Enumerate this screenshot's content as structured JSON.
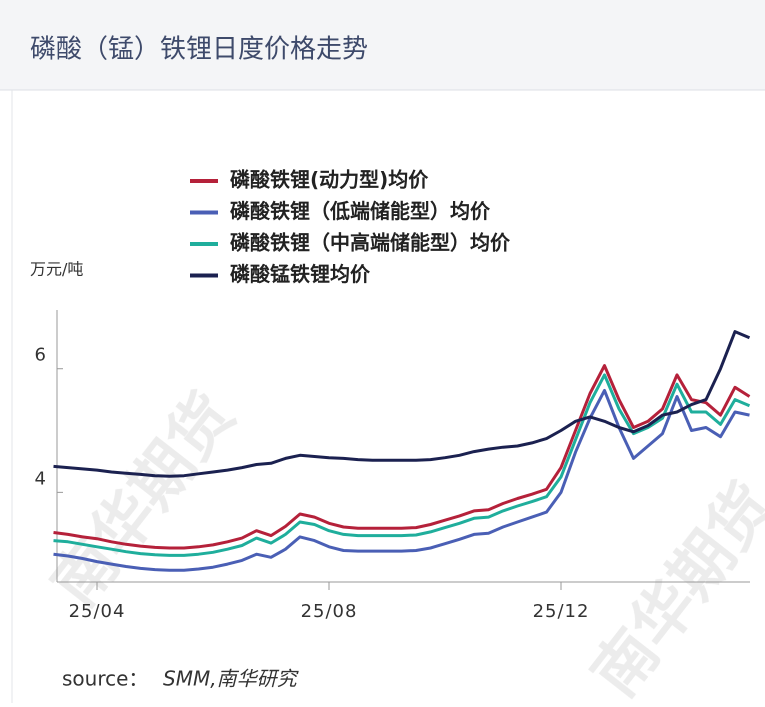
{
  "header": {
    "title": "磷酸（锰）铁锂日度价格走势"
  },
  "chart_data": {
    "type": "line",
    "y_axis_label": "万元/吨",
    "categories": [
      null,
      null,
      null,
      "25/04",
      null,
      null,
      null,
      null,
      null,
      null,
      null,
      null,
      null,
      null,
      null,
      null,
      null,
      null,
      null,
      "25/08",
      null,
      null,
      null,
      null,
      null,
      null,
      null,
      null,
      null,
      null,
      null,
      null,
      null,
      null,
      null,
      "25/12",
      null,
      null,
      null,
      null,
      null,
      null,
      null,
      null,
      null,
      null,
      null,
      null,
      null
    ],
    "series": [
      {
        "name": "磷酸铁锂(动力型)均价",
        "color": "#b5213a",
        "values": [
          3.35,
          3.32,
          3.28,
          3.25,
          3.2,
          3.16,
          3.13,
          3.11,
          3.1,
          3.1,
          3.12,
          3.15,
          3.2,
          3.26,
          3.38,
          3.3,
          3.45,
          3.65,
          3.6,
          3.5,
          3.44,
          3.42,
          3.42,
          3.42,
          3.42,
          3.43,
          3.48,
          3.55,
          3.62,
          3.7,
          3.72,
          3.82,
          3.9,
          3.97,
          4.05,
          4.4,
          5.0,
          5.6,
          6.05,
          5.5,
          5.05,
          5.15,
          5.35,
          5.9,
          5.5,
          5.45,
          5.25,
          5.7,
          5.55
        ]
      },
      {
        "name": "磷酸铁锂（低端储能型）均价",
        "color": "#4a5fb5",
        "values": [
          3.0,
          2.97,
          2.93,
          2.88,
          2.84,
          2.8,
          2.77,
          2.75,
          2.74,
          2.74,
          2.76,
          2.79,
          2.84,
          2.9,
          3.0,
          2.95,
          3.08,
          3.28,
          3.22,
          3.12,
          3.06,
          3.05,
          3.05,
          3.05,
          3.05,
          3.06,
          3.1,
          3.17,
          3.24,
          3.32,
          3.34,
          3.44,
          3.52,
          3.6,
          3.68,
          4.0,
          4.65,
          5.2,
          5.65,
          5.05,
          4.55,
          4.75,
          4.95,
          5.55,
          5.0,
          5.05,
          4.9,
          5.3,
          5.25
        ]
      },
      {
        "name": "磷酸铁锂（中高端储能型）均价",
        "color": "#1fae9c",
        "values": [
          3.22,
          3.2,
          3.16,
          3.12,
          3.08,
          3.04,
          3.01,
          2.99,
          2.98,
          2.98,
          3.0,
          3.03,
          3.08,
          3.14,
          3.26,
          3.18,
          3.32,
          3.52,
          3.48,
          3.38,
          3.32,
          3.3,
          3.3,
          3.3,
          3.3,
          3.31,
          3.36,
          3.43,
          3.5,
          3.58,
          3.6,
          3.7,
          3.78,
          3.85,
          3.93,
          4.25,
          4.85,
          5.45,
          5.9,
          5.35,
          4.95,
          5.05,
          5.2,
          5.75,
          5.3,
          5.3,
          5.1,
          5.5,
          5.4
        ]
      },
      {
        "name": "磷酸锰铁锂均价",
        "color": "#1b2150",
        "values": [
          4.42,
          4.4,
          4.38,
          4.36,
          4.33,
          4.31,
          4.29,
          4.27,
          4.26,
          4.27,
          4.3,
          4.33,
          4.36,
          4.4,
          4.45,
          4.47,
          4.55,
          4.6,
          4.58,
          4.56,
          4.55,
          4.53,
          4.52,
          4.52,
          4.52,
          4.52,
          4.53,
          4.56,
          4.6,
          4.66,
          4.7,
          4.73,
          4.75,
          4.8,
          4.87,
          5.0,
          5.15,
          5.22,
          5.15,
          5.05,
          4.98,
          5.08,
          5.25,
          5.3,
          5.42,
          5.5,
          6.0,
          6.6,
          6.5
        ]
      }
    ],
    "ylim": [
      2.55,
      6.95
    ],
    "yticks": [
      4,
      6
    ]
  },
  "watermark": "南华期货",
  "source": {
    "label": "source：",
    "text": "SMM,南华研究"
  }
}
